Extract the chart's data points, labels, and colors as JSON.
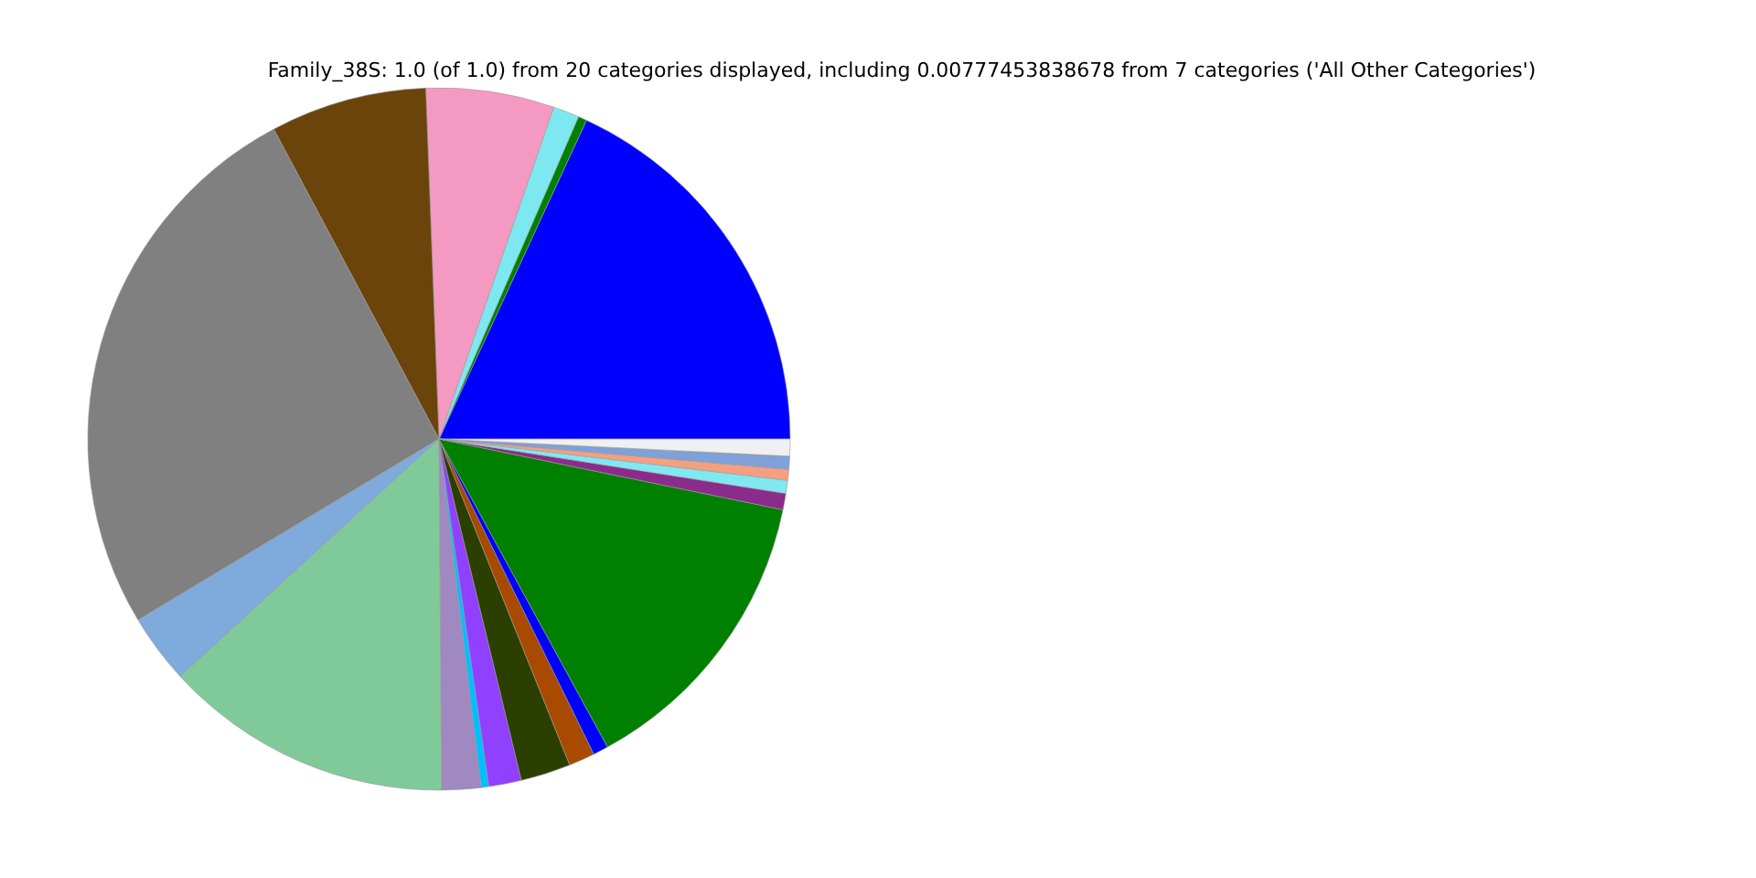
{
  "chart_data": {
    "type": "pie",
    "title": "Family_38S: 1.0 (of 1.0) from 20 categories displayed, including 0.00777453838678 from 7 categories ('All Other Categories')",
    "categories": [
      null,
      null,
      null,
      null,
      null,
      null,
      null,
      null,
      null,
      null,
      null,
      null,
      null,
      null,
      null,
      null,
      null,
      null,
      null,
      null
    ],
    "values": [
      18.1,
      0.4,
      1.2,
      5.9,
      7.2,
      25.82,
      3.2,
      13.3,
      1.8,
      0.35,
      1.5,
      2.3,
      1.2,
      0.7,
      13.8,
      0.75,
      0.6,
      0.5,
      0.6,
      0.78
    ],
    "colors": [
      "#0000ff",
      "#008000",
      "#7ee8f0",
      "#f49ac2",
      "#6b440c",
      "#808080",
      "#7eaadc",
      "#80ca9a",
      "#a088c0",
      "#00bfff",
      "#9040ff",
      "#2b3f00",
      "#a84a00",
      "#0000ff",
      "#008000",
      "#8b2b8b",
      "#80e8f0",
      "#f4a080",
      "#80a0d8",
      "#f0f0f0"
    ],
    "legend": false
  }
}
